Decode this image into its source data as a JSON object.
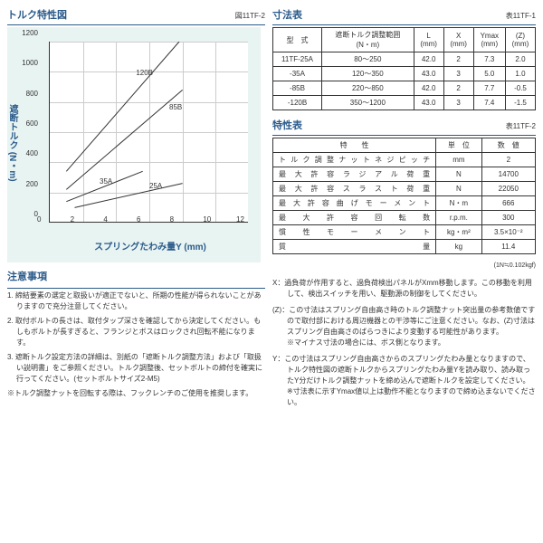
{
  "chart": {
    "section_title": "トルク特性図",
    "fig_label": "図11TF-2",
    "ylabel": "遮断トルク (N・m)",
    "xlabel": "スプリングたわみ量Y (mm)",
    "xlim": [
      0,
      12
    ],
    "ylim": [
      0,
      1200
    ],
    "xticks": [
      0,
      2,
      4,
      6,
      8,
      10,
      12
    ],
    "yticks": [
      0,
      200,
      400,
      600,
      800,
      1000,
      1200
    ],
    "background_color": "#e8f4f2",
    "series": [
      {
        "name": "120B",
        "points": [
          [
            1,
            340
          ],
          [
            7.8,
            1200
          ]
        ]
      },
      {
        "name": "85B",
        "points": [
          [
            1,
            220
          ],
          [
            8,
            880
          ]
        ]
      },
      {
        "name": "35A",
        "points": [
          [
            1,
            140
          ],
          [
            5.6,
            340
          ]
        ]
      },
      {
        "name": "25A",
        "points": [
          [
            1.5,
            100
          ],
          [
            8,
            260
          ]
        ]
      }
    ],
    "series_labels": [
      {
        "text": "120B",
        "x": 5.2,
        "y": 1020
      },
      {
        "text": "85B",
        "x": 7.2,
        "y": 790
      },
      {
        "text": "35A",
        "x": 3.0,
        "y": 300
      },
      {
        "text": "25A",
        "x": 6.0,
        "y": 270
      }
    ]
  },
  "table1": {
    "section_title": "寸法表",
    "fig_label": "表11TF-1",
    "headers": [
      "型　式",
      "遮断トルク調整範囲\n(N・m)",
      "L\n(mm)",
      "X\n(mm)",
      "Ymax\n(mm)",
      "(Z)\n(mm)"
    ],
    "rows": [
      [
        "11TF-25A",
        "80～250",
        "42.0",
        "2",
        "7.3",
        "2.0"
      ],
      [
        "-35A",
        "120～350",
        "43.0",
        "3",
        "5.0",
        "1.0"
      ],
      [
        "-85B",
        "220～850",
        "42.0",
        "2",
        "7.7",
        "-0.5"
      ],
      [
        "-120B",
        "350～1200",
        "43.0",
        "3",
        "7.4",
        "-1.5"
      ]
    ]
  },
  "table2": {
    "section_title": "特性表",
    "fig_label": "表11TF-2",
    "headers": [
      "特　　性",
      "単　位",
      "数　値"
    ],
    "rows": [
      [
        "トルク調整ナットネジピッチ",
        "mm",
        "2"
      ],
      [
        "最大許容ラジアル荷重",
        "N",
        "14700"
      ],
      [
        "最大許容スラスト荷重",
        "N",
        "22050"
      ],
      [
        "最大許容曲げモーメント",
        "N・m",
        "666"
      ],
      [
        "最　大　許　容　回　転　数",
        "r.p.m.",
        "300"
      ],
      [
        "慣　性　モ　ー　メ　ン　ト",
        "kg・m²",
        "3.5×10⁻²"
      ],
      [
        "質　　　　　　　　量",
        "kg",
        "11.4"
      ]
    ],
    "footnote": "(1N≒0.102kgf)"
  },
  "notes_left": {
    "title": "注意事項",
    "items": [
      "1. 締結要素の選定と取扱いが適正でないと、所期の性能が得られないことがありますので充分注意してください。",
      "2. 取付ボルトの長さは、取付タップ深さを確認してから決定してください。もしもボルトが長すぎると、フランジとボスはロックされ回転不能になります。",
      "3. 遮断トルク設定方法の詳細は、別紙の「遮断トルク調整方法」および「取扱い説明書」をご参照ください。トルク調整後、セットボルトの締付を確実に行ってください。(セットボルトサイズ2-M5)",
      "※トルク調整ナットを回転する際は、フックレンチのご使用を推奨します。"
    ]
  },
  "notes_right": [
    "X：過負荷が作用すると、過負荷検出パネルがXmm移動します。この移動を利用して、検出スイッチを用い、駆動源の制御をしてください。",
    "(Z)：この寸法はスプリング自由高さ時のトルク調整ナット突出量の参考数値ですので取付部における周辺機器との干渉等にご注意ください。なお、(Z)寸法はスプリング自由高さのばらつきにより変動する可能性があります。\n※マイナス寸法の場合には、ボス側となります。",
    "Y：この寸法はスプリング自由高さからのスプリングたわみ量となりますので、トルク特性図の遮断トルクからスプリングたわみ量Yを読み取り、読み取ったY分だけトルク調整ナットを締め込んで遮断トルクを設定してください。\n※寸法表に示すYmax値以上は動作不能となりますので締め込まないでください。"
  ]
}
